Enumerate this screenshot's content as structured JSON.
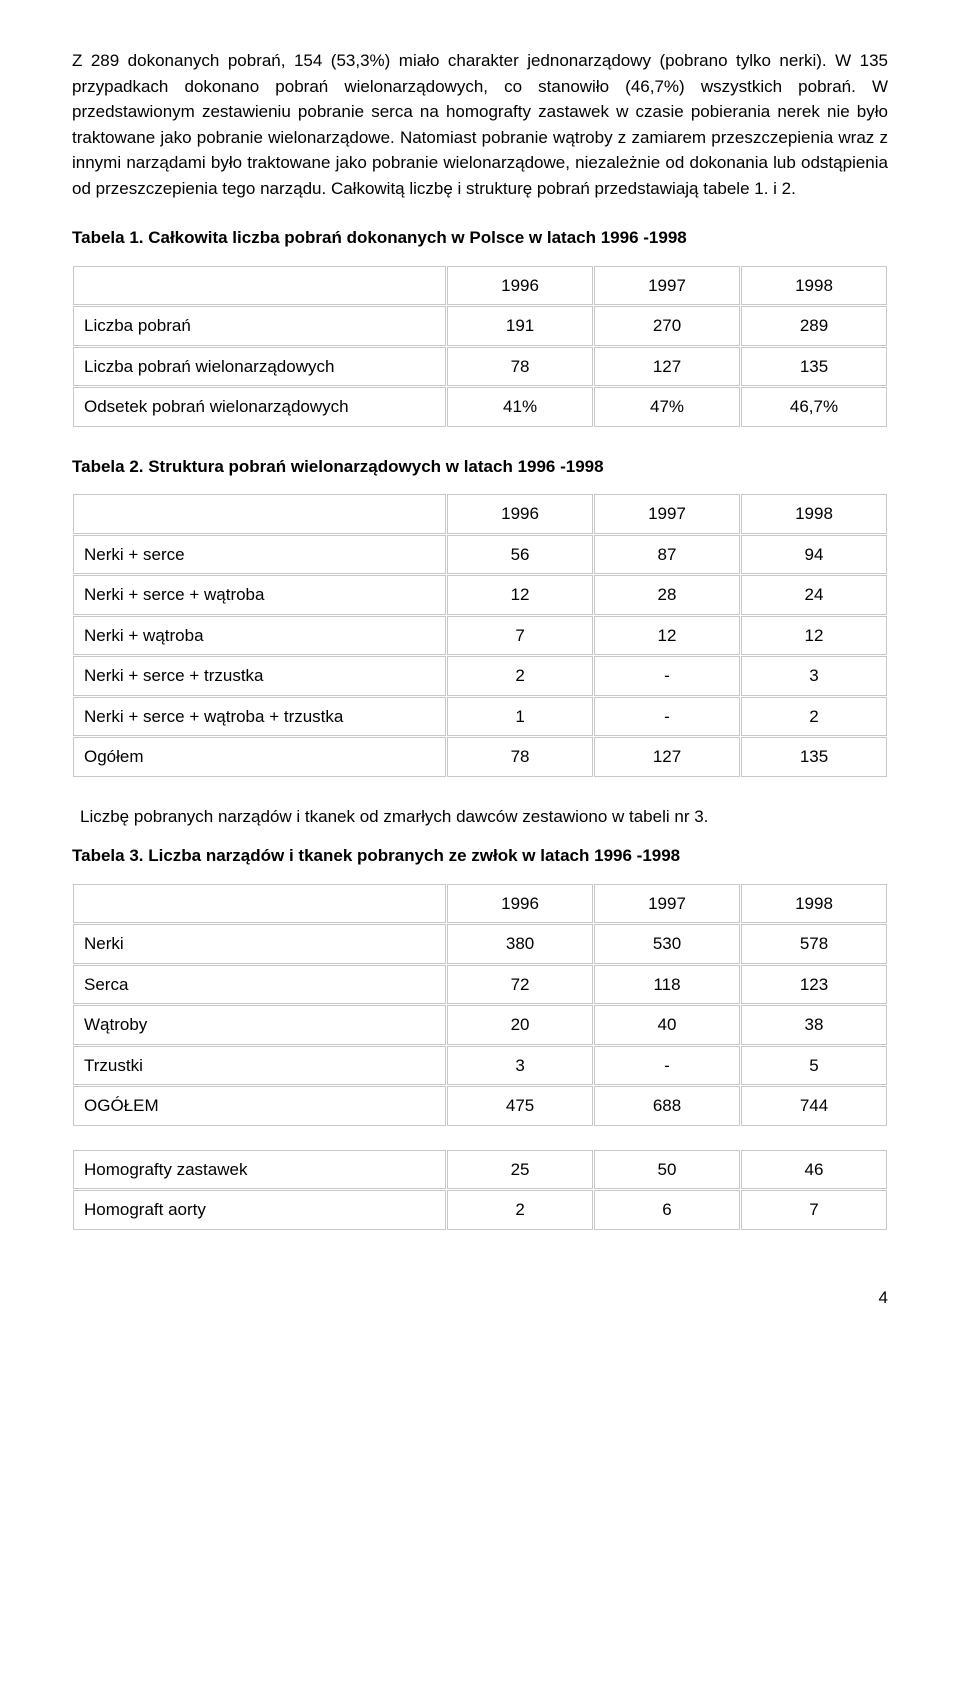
{
  "paragraph1": "Z 289 dokonanych pobrań, 154 (53,3%) miało charakter jednonarządowy (pobrano tylko nerki). W 135 przypadkach dokonano pobrań wielonarządowych, co stanowiło (46,7%) wszystkich pobrań. W przedstawionym zestawieniu pobranie serca na homografty zastawek w czasie pobierania nerek nie było traktowane jako pobranie wielonarządowe. Natomiast pobranie wątroby z zamiarem przeszczepienia wraz z innymi narządami było traktowane jako pobranie wielonarządowe, niezależnie od dokonania lub odstąpienia od przeszczepienia tego narządu. Całkowitą liczbę i strukturę pobrań przedstawiają tabele 1. i 2.",
  "table1": {
    "caption": "Tabela 1. Całkowita liczba pobrań dokonanych w Polsce w latach 1996 -1998",
    "headers": [
      "",
      "1996",
      "1997",
      "1998"
    ],
    "rows": [
      [
        "Liczba pobrań",
        "191",
        "270",
        "289"
      ],
      [
        "Liczba pobrań wielonarządowych",
        "78",
        "127",
        "135"
      ],
      [
        "Odsetek pobrań wielonarządowych",
        "41%",
        "47%",
        "46,7%"
      ]
    ]
  },
  "table2": {
    "caption": "Tabela 2. Struktura pobrań wielonarządowych w latach 1996 -1998",
    "headers": [
      "",
      "1996",
      "1997",
      "1998"
    ],
    "rows": [
      [
        "Nerki + serce",
        "56",
        "87",
        "94"
      ],
      [
        "Nerki + serce + wątroba",
        "12",
        "28",
        "24"
      ],
      [
        "Nerki + wątroba",
        "7",
        "12",
        "12"
      ],
      [
        "Nerki + serce + trzustka",
        "2",
        "-",
        "3"
      ],
      [
        "Nerki + serce + wątroba + trzustka",
        "1",
        "-",
        "2"
      ],
      [
        "Ogółem",
        "78",
        "127",
        "135"
      ]
    ]
  },
  "intro3": "Liczbę pobranych narządów i tkanek od zmarłych dawców zestawiono w tabeli nr 3.",
  "table3": {
    "caption": "Tabela 3. Liczba narządów i tkanek pobranych ze zwłok w latach 1996 -1998",
    "headers": [
      "",
      "1996",
      "1997",
      "1998"
    ],
    "rows_a": [
      [
        "Nerki",
        "380",
        "530",
        "578"
      ],
      [
        "Serca",
        "72",
        "118",
        "123"
      ],
      [
        "Wątroby",
        "20",
        "40",
        "38"
      ],
      [
        "Trzustki",
        "3",
        "-",
        "5"
      ],
      [
        "OGÓŁEM",
        "475",
        "688",
        "744"
      ]
    ],
    "rows_b": [
      [
        "Homografty zastawek",
        "25",
        "50",
        "46"
      ],
      [
        "Homograft aorty",
        "2",
        "6",
        "7"
      ]
    ]
  },
  "pageNumber": "4",
  "colWidths": {
    "label": "46%",
    "c1": "18%",
    "c2": "18%",
    "c3": "18%"
  }
}
